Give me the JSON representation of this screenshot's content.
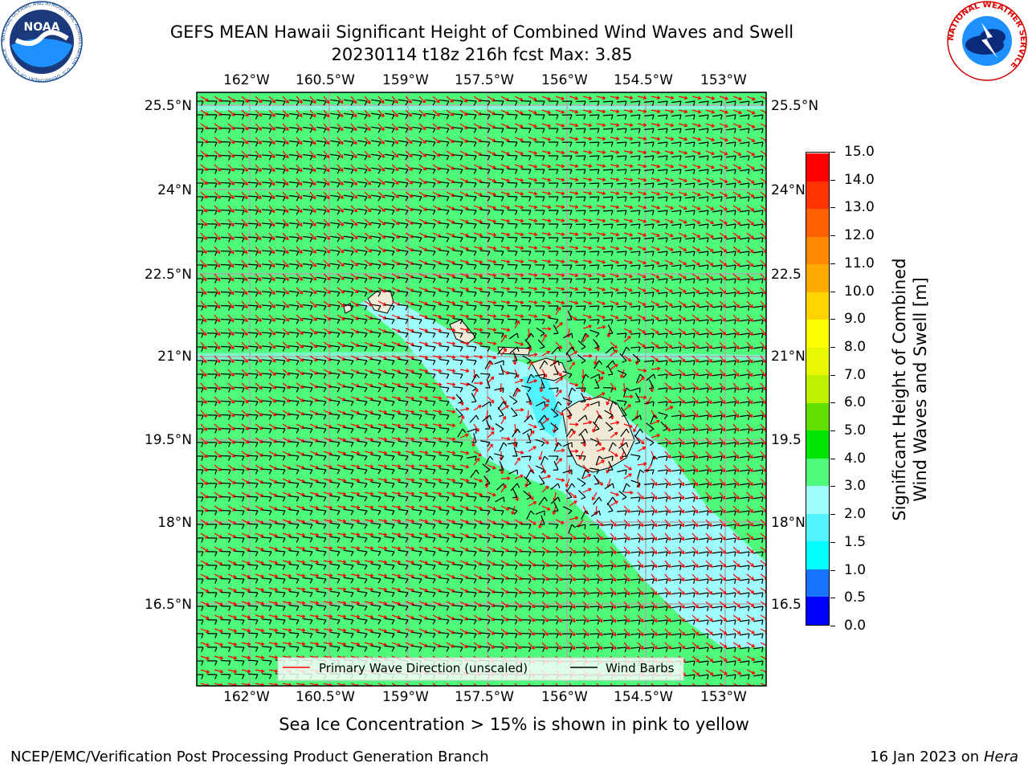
{
  "header": {
    "title_line1": "GEFS MEAN Hawaii Significant Height of Combined Wind Waves and Swell",
    "title_line2": "20230114 t18z 216h fcst   Max: 3.85",
    "noaa_logo_text": "NOAA",
    "noaa_ring_text": "NATIONAL OCEANIC AND ATMOSPHERIC ADMINISTRATION · U.S. DEPARTMENT OF COMMERCE",
    "nws_ring_text": "NATIONAL WEATHER SERVICE"
  },
  "map": {
    "lon_labels": [
      "162°W",
      "160.5°W",
      "159°W",
      "157.5°W",
      "156°W",
      "154.5°W",
      "153°W"
    ],
    "lat_labels_left": [
      "25.5°N",
      "24°N",
      "22.5°N",
      "21°N",
      "19.5°N",
      "18°N",
      "16.5°N"
    ],
    "lat_labels_right": [
      "25.5°N",
      "24°N",
      "22.5",
      "21°N",
      "19.5",
      "18°N",
      "16.5"
    ],
    "legend": {
      "wave_direction_label": "Primary Wave Direction (unscaled)",
      "wind_barbs_label": "Wind Barbs",
      "wave_direction_color": "#ff0000",
      "wind_barbs_color": "#000000"
    },
    "colors": {
      "ocean_3_4": "#4dfa7a",
      "ocean_2_3": "#9ffcfc",
      "ocean_1_5_2": "#4ff4ff",
      "land": "#efead6",
      "grid": "#a9a9a9"
    }
  },
  "colorbar": {
    "label_line1": "Significant Height of Combined",
    "label_line2": "Wind Waves and Swell [m]",
    "ticks": [
      "0.0",
      "0.5",
      "1.0",
      "1.5",
      "2.0",
      "3.0",
      "4.0",
      "5.0",
      "6.0",
      "7.0",
      "8.0",
      "9.0",
      "10.0",
      "11.0",
      "12.0",
      "13.0",
      "14.0",
      "15.0"
    ],
    "colors": [
      "#0000ff",
      "#1874ff",
      "#00ffff",
      "#4ff4ff",
      "#9ffcfc",
      "#4dfa7a",
      "#00e600",
      "#60e000",
      "#c0f000",
      "#e8f800",
      "#ffff00",
      "#ffd500",
      "#ffaa00",
      "#ff8800",
      "#ff6000",
      "#ff3300",
      "#ff0000"
    ]
  },
  "note": "Sea Ice Concentration > 15% is shown in pink to yellow",
  "footer": {
    "left": "NCEP/EMC/Verification Post Processing Product Generation Branch",
    "right_prefix": "16 Jan 2023 on ",
    "right_host": "Hera"
  }
}
